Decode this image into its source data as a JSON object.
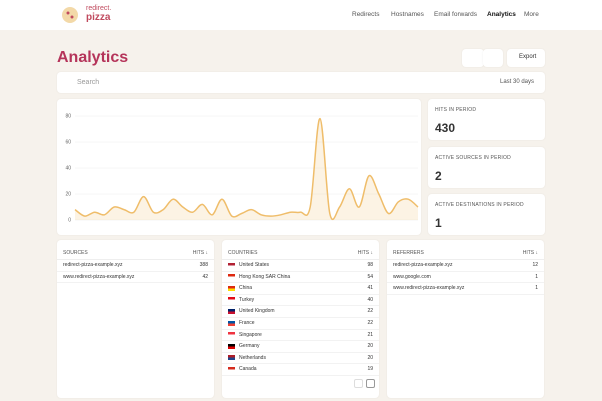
{
  "header": {
    "logo": [
      "redirect.",
      "pizza"
    ],
    "nav": [
      "Redirects",
      "Hostnames",
      "Email forwards",
      "Analytics",
      "More"
    ]
  },
  "page": {
    "title": "Analytics",
    "export": "Export",
    "search": "Search",
    "range": "Last 30 days"
  },
  "chart_data": {
    "type": "line",
    "color": "#efbd6a",
    "ylim": [
      0,
      80
    ],
    "yticks": [
      0,
      20,
      40,
      60,
      80
    ],
    "grid": true,
    "values": [
      8,
      3,
      6,
      4,
      10,
      8,
      6,
      18,
      6,
      8,
      16,
      10,
      6,
      12,
      4,
      16,
      3,
      5,
      8,
      4,
      3,
      4,
      6,
      6,
      10,
      78,
      5,
      10,
      24,
      10,
      34,
      20,
      5,
      14,
      16,
      10
    ]
  },
  "stats": [
    {
      "label": "HITS IN PERIOD",
      "value": 430
    },
    {
      "label": "ACTIVE SOURCES IN PERIOD",
      "value": 2
    },
    {
      "label": "ACTIVE DESTINATIONS IN PERIOD",
      "value": 1
    }
  ],
  "tables": [
    {
      "title": "SOURCES",
      "hits": "HITS ↓",
      "rows": [
        [
          "redirect-pizza-example.xyz",
          388
        ],
        [
          "www.redirect-pizza-example.xyz",
          42
        ]
      ]
    },
    {
      "title": "COUNTRIES",
      "hits": "HITS ↓",
      "rows": [
        [
          "United States",
          98
        ],
        [
          "Hong Kong SAR China",
          54
        ],
        [
          "China",
          41
        ],
        [
          "Turkey",
          40
        ],
        [
          "United Kingdom",
          22
        ],
        [
          "France",
          22
        ],
        [
          "Singapore",
          21
        ],
        [
          "Germany",
          20
        ],
        [
          "Netherlands",
          20
        ],
        [
          "Canada",
          19
        ]
      ]
    },
    {
      "title": "REFERRERS",
      "hits": "HITS ↓",
      "rows": [
        [
          "redirect-pizza-example.xyz",
          12
        ],
        [
          "www.google.com",
          1
        ],
        [
          "www.redirect-pizza-example.xyz",
          1
        ]
      ]
    }
  ]
}
